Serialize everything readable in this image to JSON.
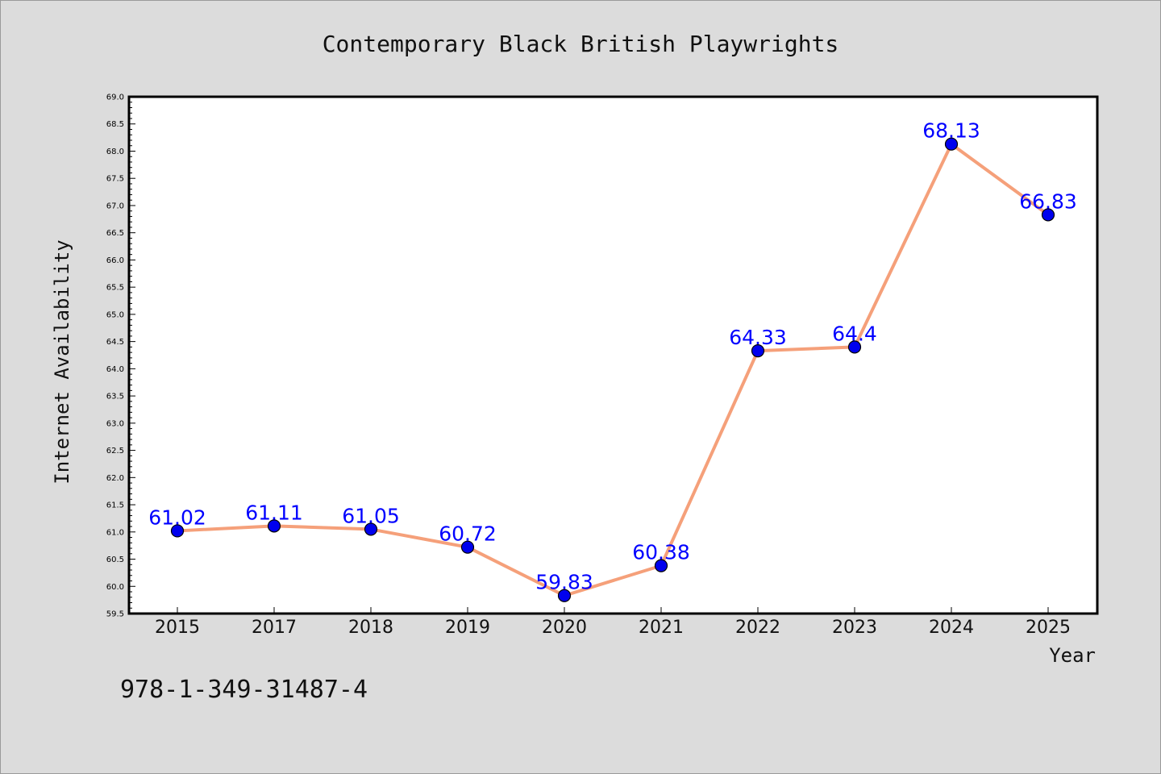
{
  "chart_data": {
    "type": "line",
    "title": "Contemporary Black British Playwrights",
    "xlabel": "Year",
    "ylabel": "Internet Availability",
    "categories": [
      "2015",
      "2017",
      "2018",
      "2019",
      "2020",
      "2021",
      "2022",
      "2023",
      "2024",
      "2025"
    ],
    "series": [
      {
        "values": [
          61.02,
          61.11,
          61.05,
          60.72,
          59.83,
          60.38,
          64.33,
          64.4,
          68.13,
          66.83
        ],
        "labels": [
          "61.02",
          "61.11",
          "61.05",
          "60.72",
          "59.83",
          "60.38",
          "64.33",
          "64.4",
          "68.13",
          "66.83"
        ],
        "line_color": "#f5a07a",
        "marker_color": "#0000ee"
      }
    ],
    "ylim": [
      59.5,
      69.0
    ],
    "yticks": [
      "59.5",
      "60.0",
      "60.5",
      "61.0",
      "61.5",
      "62.0",
      "62.5",
      "63.0",
      "63.5",
      "64.0",
      "64.5",
      "65.0",
      "65.5",
      "66.0",
      "66.5",
      "67.0",
      "67.5",
      "68.0",
      "68.5",
      "69.0"
    ],
    "grid": false,
    "legend": "none",
    "background_color": "#dcdcdc",
    "plot_background_color": "#ffffff",
    "label_color": "#0000ff"
  },
  "footer": {
    "isbn": "978-1-349-31487-4"
  }
}
